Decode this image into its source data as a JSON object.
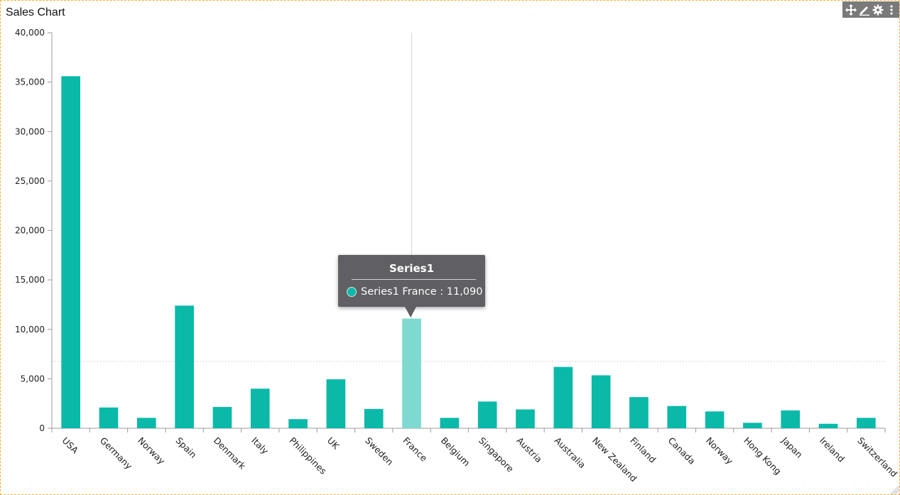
{
  "widget": {
    "title": "Sales Chart",
    "toolbar": {
      "move_icon": "move-icon",
      "edit_icon": "pencil-icon",
      "settings_icon": "gear-icon",
      "more_icon": "more-vertical-icon"
    }
  },
  "colors": {
    "bar": "#0bb9a9",
    "bar_highlight": "#7edad1",
    "toolbar_bg": "#7a7a7a",
    "tooltip_bg": "#5f5f64",
    "border": "#f2b134"
  },
  "chart_data": {
    "type": "bar",
    "title": "Sales Chart",
    "xlabel": "",
    "ylabel": "",
    "ylim": [
      0,
      40000
    ],
    "yticks": [
      0,
      5000,
      10000,
      15000,
      20000,
      25000,
      30000,
      35000,
      40000
    ],
    "ytick_labels": [
      "0",
      "5,000",
      "10,000",
      "15,000",
      "20,000",
      "25,000",
      "30,000",
      "35,000",
      "40,000"
    ],
    "grid": false,
    "categories": [
      "USA",
      "Germany",
      "Norway",
      "Spain",
      "Denmark",
      "Italy",
      "Philippines",
      "UK",
      "Sweden",
      "France",
      "Belgium",
      "Singapore",
      "Austria",
      "Australia",
      "New Zealand",
      "Finland",
      "Canada",
      "Norway",
      "Hong Kong",
      "Japan",
      "Ireland",
      "Switzerland"
    ],
    "series": [
      {
        "name": "Series1",
        "values": [
          35600,
          2100,
          1050,
          12400,
          2150,
          4000,
          920,
          4950,
          1950,
          11090,
          1050,
          2700,
          1900,
          6200,
          5350,
          3150,
          2250,
          1700,
          550,
          1800,
          450,
          1050
        ]
      }
    ],
    "highlighted_index": 9,
    "tooltip": {
      "title": "Series1",
      "text": "Series1 France : 11,090"
    }
  }
}
